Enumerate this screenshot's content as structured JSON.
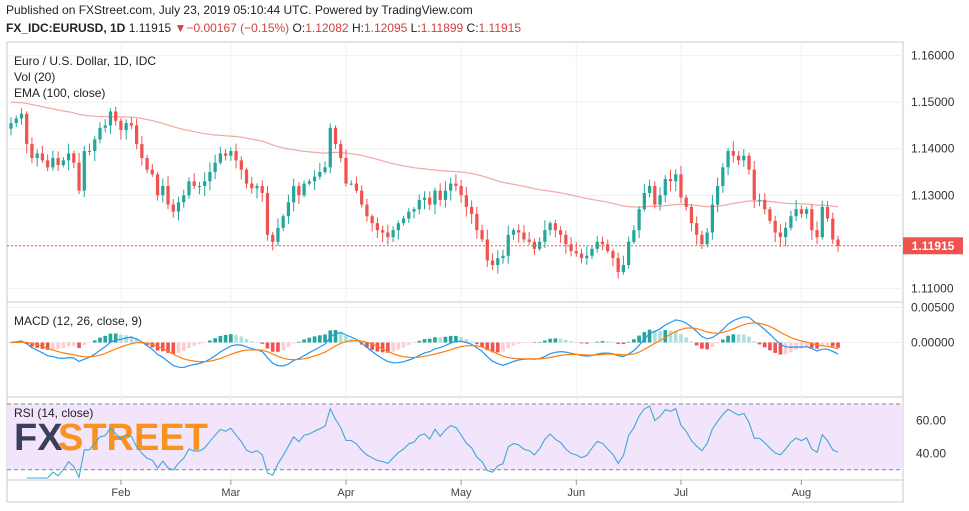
{
  "header": {
    "line1": "Published on FXStreet.com, July 23, 2019 05:10:44 UTC. Powered by TradingView.com",
    "symbol": "FX_IDC:EURUSD, 1D",
    "last": "1.11915",
    "down_arrow": "▼",
    "change": "−0.00167 (−0.15%)",
    "open_label": "O:",
    "open": "1.12082",
    "high_label": "H:",
    "high": "1.12095",
    "low_label": "L:",
    "low": "1.11899",
    "close_label": "C:",
    "close": "1.11915"
  },
  "colors": {
    "up": "#26a69a",
    "down": "#ef5350",
    "ema": "#f4a6a6",
    "macd_line": "#2196f3",
    "signal_line": "#ff7f0e",
    "hist_up_strong": "#26a69a",
    "hist_up_weak": "#b2dfdb",
    "hist_down_strong": "#ef5350",
    "hist_down_weak": "#ffcdd2",
    "rsi": "#3fa9d6",
    "rsi_band": "#f1e4fb",
    "price_tag": "#ef5350"
  },
  "logo": {
    "text_fx": "FX",
    "text_street": "STREET"
  },
  "chart_data": [
    {
      "type": "candlestick",
      "title": "Euro / U.S. Dollar, 1D, IDC",
      "indicators": [
        "Vol (20)",
        "EMA (100, close)"
      ],
      "ylim": [
        1.1075,
        1.1625
      ],
      "yticks": [
        "1.16000",
        "1.15000",
        "1.14000",
        "1.13000",
        "1.12000",
        "1.11000"
      ],
      "ytick_values": [
        1.16,
        1.15,
        1.14,
        1.13,
        1.12,
        1.11
      ],
      "last_price_label": "1.11915",
      "last_price": 1.11915,
      "closes": [
        1.1455,
        1.1465,
        1.1475,
        1.141,
        1.138,
        1.139,
        1.1375,
        1.136,
        1.138,
        1.1365,
        1.1375,
        1.139,
        1.137,
        1.131,
        1.1395,
        1.1395,
        1.142,
        1.1445,
        1.145,
        1.148,
        1.146,
        1.144,
        1.1455,
        1.145,
        1.141,
        1.138,
        1.1355,
        1.1345,
        1.13,
        1.132,
        1.128,
        1.1265,
        1.1285,
        1.13,
        1.133,
        1.132,
        1.132,
        1.133,
        1.135,
        1.137,
        1.139,
        1.1385,
        1.1395,
        1.1375,
        1.1355,
        1.1325,
        1.1315,
        1.132,
        1.1305,
        1.1215,
        1.12,
        1.123,
        1.1255,
        1.1285,
        1.132,
        1.13,
        1.1325,
        1.133,
        1.134,
        1.135,
        1.136,
        1.1445,
        1.141,
        1.138,
        1.1325,
        1.1325,
        1.131,
        1.128,
        1.1255,
        1.124,
        1.1225,
        1.122,
        1.121,
        1.1225,
        1.124,
        1.125,
        1.1265,
        1.127,
        1.129,
        1.1295,
        1.128,
        1.131,
        1.129,
        1.131,
        1.1325,
        1.132,
        1.13,
        1.1275,
        1.126,
        1.1225,
        1.1205,
        1.116,
        1.115,
        1.1165,
        1.117,
        1.1215,
        1.1225,
        1.122,
        1.1205,
        1.12,
        1.1185,
        1.12,
        1.1225,
        1.124,
        1.1225,
        1.1215,
        1.1195,
        1.118,
        1.1175,
        1.1165,
        1.117,
        1.1185,
        1.12,
        1.1195,
        1.118,
        1.1165,
        1.1135,
        1.115,
        1.12,
        1.1225,
        1.127,
        1.1305,
        1.132,
        1.128,
        1.13,
        1.1335,
        1.133,
        1.1345,
        1.1295,
        1.1275,
        1.124,
        1.1215,
        1.1195,
        1.122,
        1.128,
        1.132,
        1.136,
        1.1395,
        1.1385,
        1.1375,
        1.1385,
        1.1355,
        1.129,
        1.129,
        1.127,
        1.1245,
        1.122,
        1.121,
        1.123,
        1.1255,
        1.127,
        1.126,
        1.127,
        1.1225,
        1.121,
        1.1275,
        1.125,
        1.1205,
        1.1192
      ]
    },
    {
      "type": "macd",
      "title": "MACD (12, 26, close, 9)",
      "ylim": [
        -0.0075,
        0.0055
      ],
      "yticks": [
        "0.00500",
        "0.00000"
      ],
      "ytick_values": [
        0.005,
        0.0
      ]
    },
    {
      "type": "rsi",
      "title": "RSI (14, close)",
      "ylim": [
        25,
        73
      ],
      "band": [
        30,
        70
      ],
      "yticks": [
        "60.00",
        "40.00"
      ],
      "ytick_values": [
        60,
        40
      ]
    }
  ],
  "x_axis": {
    "months": [
      "Feb",
      "Mar",
      "Apr",
      "May",
      "Jun",
      "Jul",
      "Aug"
    ],
    "month_bar_index": [
      21,
      42,
      64,
      86,
      108,
      128,
      151
    ]
  }
}
